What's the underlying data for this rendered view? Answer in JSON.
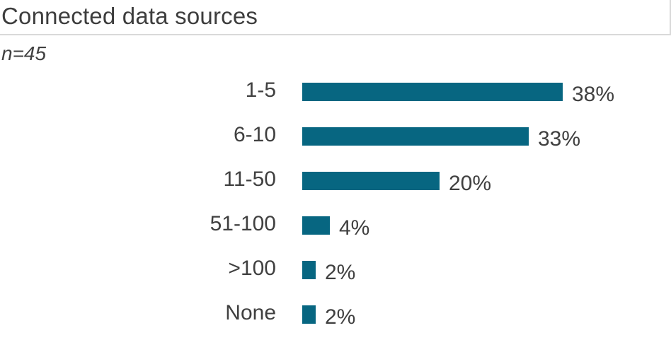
{
  "header": {
    "title": "Connected data sources",
    "sample_size": "n=45"
  },
  "colors": {
    "bar": "#076681",
    "text": "#404040",
    "title": "#3d3d3d",
    "rule": "#d9d9d9"
  },
  "chart_data": {
    "type": "bar",
    "orientation": "horizontal",
    "title": "Connected data sources",
    "subtitle": "n=45",
    "categories": [
      "1-5",
      "6-10",
      "11-50",
      "51-100",
      ">100",
      "None"
    ],
    "values": [
      38,
      33,
      20,
      4,
      2,
      2
    ],
    "value_labels": [
      "38%",
      "33%",
      "20%",
      "4%",
      "2%",
      "2%"
    ],
    "unit": "percent",
    "xlim": [
      0,
      40
    ],
    "grid": false,
    "legend": false,
    "axis_ticks": false
  }
}
